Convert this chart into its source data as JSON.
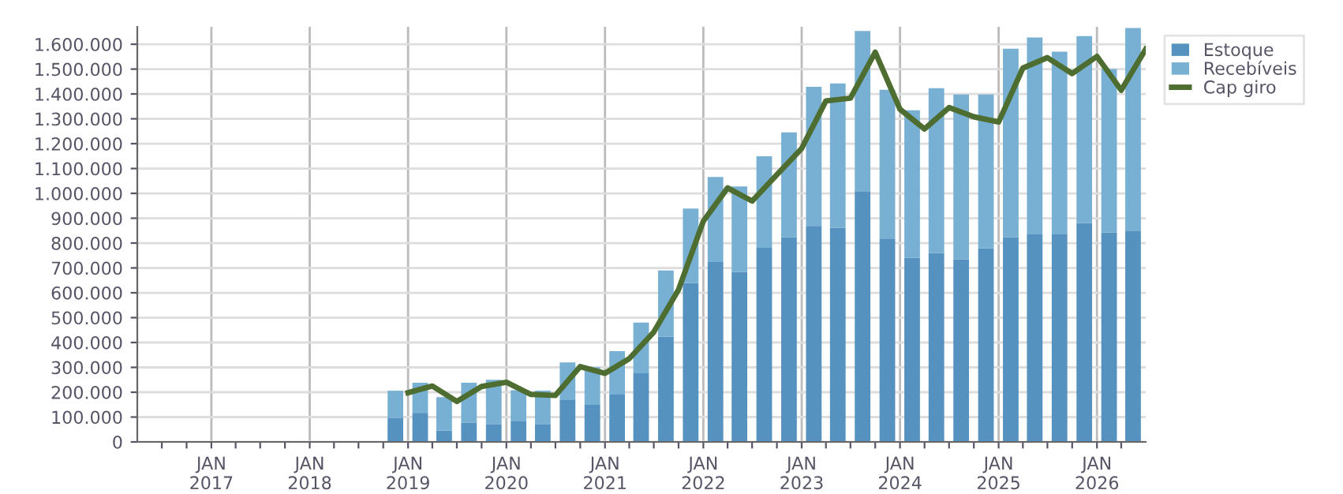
{
  "chart_data": {
    "type": "bar",
    "stacked": true,
    "xlim": [
      "2016-04-01",
      "2026-07-01"
    ],
    "xticks": [
      {
        "value": "2016-07-01",
        "label": null
      },
      {
        "value": "2016-10-01",
        "label": null
      },
      {
        "value": "2017-01-01",
        "label": "JAN\n2017"
      },
      {
        "value": "2017-04-01",
        "label": null
      },
      {
        "value": "2017-07-01",
        "label": null
      },
      {
        "value": "2017-10-01",
        "label": null
      },
      {
        "value": "2018-01-01",
        "label": "JAN\n2018"
      },
      {
        "value": "2018-04-01",
        "label": null
      },
      {
        "value": "2018-07-01",
        "label": null
      },
      {
        "value": "2018-10-01",
        "label": null
      },
      {
        "value": "2019-01-01",
        "label": "JAN\n2019"
      },
      {
        "value": "2019-04-01",
        "label": null
      },
      {
        "value": "2019-07-01",
        "label": null
      },
      {
        "value": "2019-10-01",
        "label": null
      },
      {
        "value": "2020-01-01",
        "label": "JAN\n2020"
      },
      {
        "value": "2020-04-01",
        "label": null
      },
      {
        "value": "2020-07-01",
        "label": null
      },
      {
        "value": "2020-10-01",
        "label": null
      },
      {
        "value": "2021-01-01",
        "label": "JAN\n2021"
      },
      {
        "value": "2021-04-01",
        "label": null
      },
      {
        "value": "2021-07-01",
        "label": null
      },
      {
        "value": "2021-10-01",
        "label": null
      },
      {
        "value": "2022-01-01",
        "label": "JAN\n2022"
      },
      {
        "value": "2022-04-01",
        "label": null
      },
      {
        "value": "2022-07-01",
        "label": null
      },
      {
        "value": "2022-10-01",
        "label": null
      },
      {
        "value": "2023-01-01",
        "label": "JAN\n2023"
      },
      {
        "value": "2023-04-01",
        "label": null
      },
      {
        "value": "2023-07-01",
        "label": null
      },
      {
        "value": "2023-10-01",
        "label": null
      },
      {
        "value": "2024-01-01",
        "label": "JAN\n2024"
      },
      {
        "value": "2024-04-01",
        "label": null
      },
      {
        "value": "2024-07-01",
        "label": null
      },
      {
        "value": "2024-10-01",
        "label": null
      },
      {
        "value": "2025-01-01",
        "label": "JAN\n2025"
      },
      {
        "value": "2025-04-01",
        "label": null
      },
      {
        "value": "2025-07-01",
        "label": null
      },
      {
        "value": "2025-10-01",
        "label": null
      },
      {
        "value": "2026-01-01",
        "label": "JAN\n2026"
      },
      {
        "value": "2026-04-01",
        "label": null
      }
    ],
    "ylim": [
      0,
      1670000
    ],
    "yticks": [
      {
        "value": 0,
        "label": "0"
      },
      {
        "value": 100000,
        "label": "100.000"
      },
      {
        "value": 200000,
        "label": "200.000"
      },
      {
        "value": 300000,
        "label": "300.000"
      },
      {
        "value": 400000,
        "label": "400.000"
      },
      {
        "value": 500000,
        "label": "500.000"
      },
      {
        "value": 600000,
        "label": "600.000"
      },
      {
        "value": 700000,
        "label": "700.000"
      },
      {
        "value": 800000,
        "label": "800.000"
      },
      {
        "value": 900000,
        "label": "900.000"
      },
      {
        "value": 1000000,
        "label": "1.000.000"
      },
      {
        "value": 1100000,
        "label": "1.100.000"
      },
      {
        "value": 1200000,
        "label": "1.200.000"
      },
      {
        "value": 1300000,
        "label": "1.300.000"
      },
      {
        "value": 1400000,
        "label": "1.400.000"
      },
      {
        "value": 1500000,
        "label": "1.500.000"
      },
      {
        "value": 1600000,
        "label": "1.600.000"
      }
    ],
    "x": [
      "2018-11-15",
      "2019-02-15",
      "2019-05-15",
      "2019-08-15",
      "2019-11-15",
      "2020-02-15",
      "2020-05-15",
      "2020-08-15",
      "2020-11-15",
      "2021-02-15",
      "2021-05-15",
      "2021-08-15",
      "2021-11-15",
      "2022-02-15",
      "2022-05-15",
      "2022-08-15",
      "2022-11-15",
      "2023-02-15",
      "2023-05-15",
      "2023-08-15",
      "2023-11-15",
      "2024-02-15",
      "2024-05-15",
      "2024-08-15",
      "2024-11-15",
      "2025-02-15",
      "2025-05-15",
      "2025-08-15",
      "2025-11-15",
      "2026-02-15",
      "2026-05-15"
    ],
    "series": [
      {
        "name": "Estoque",
        "color": "#5592c0",
        "values": [
          97000,
          117000,
          46000,
          78000,
          72000,
          85000,
          72000,
          168000,
          149000,
          193000,
          276000,
          424000,
          639000,
          724000,
          684000,
          781000,
          824000,
          869000,
          862000,
          1009000,
          818000,
          741000,
          760000,
          735000,
          779000,
          824000,
          837000,
          837000,
          881000,
          843000,
          850000
        ]
      },
      {
        "name": "Recebíveis",
        "color": "#78b0d4",
        "values": [
          109000,
          121000,
          134000,
          160000,
          178000,
          123000,
          134000,
          152000,
          152000,
          172000,
          204000,
          266000,
          300000,
          342000,
          344000,
          368000,
          421000,
          560000,
          580000,
          644000,
          599000,
          593000,
          663000,
          663000,
          619000,
          758000,
          790000,
          733000,
          752000,
          657000,
          815000
        ]
      },
      {
        "name": "Cap giro",
        "type": "line",
        "color": "#4e6e31",
        "x": [
          "2019-01-01",
          "2019-04-01",
          "2019-07-01",
          "2019-10-01",
          "2020-01-01",
          "2020-04-01",
          "2020-07-01",
          "2020-10-01",
          "2021-01-01",
          "2021-04-01",
          "2021-07-01",
          "2021-10-01",
          "2022-01-01",
          "2022-04-01",
          "2022-07-01",
          "2022-10-01",
          "2023-01-01",
          "2023-04-01",
          "2023-07-01",
          "2023-10-01",
          "2024-01-01",
          "2024-04-01",
          "2024-07-01",
          "2024-10-01",
          "2025-01-01",
          "2025-04-01",
          "2025-07-01",
          "2025-10-01",
          "2026-01-01",
          "2026-04-01",
          "2026-07-01"
        ],
        "values": [
          198000,
          225000,
          163000,
          223000,
          240000,
          191000,
          187000,
          303000,
          276000,
          335000,
          442000,
          613000,
          888000,
          1022000,
          969000,
          1075000,
          1181000,
          1372000,
          1383000,
          1568000,
          1338000,
          1259000,
          1345000,
          1308000,
          1287000,
          1504000,
          1546000,
          1482000,
          1551000,
          1415000,
          1580000
        ]
      }
    ],
    "grid": true,
    "legend": "top right"
  }
}
